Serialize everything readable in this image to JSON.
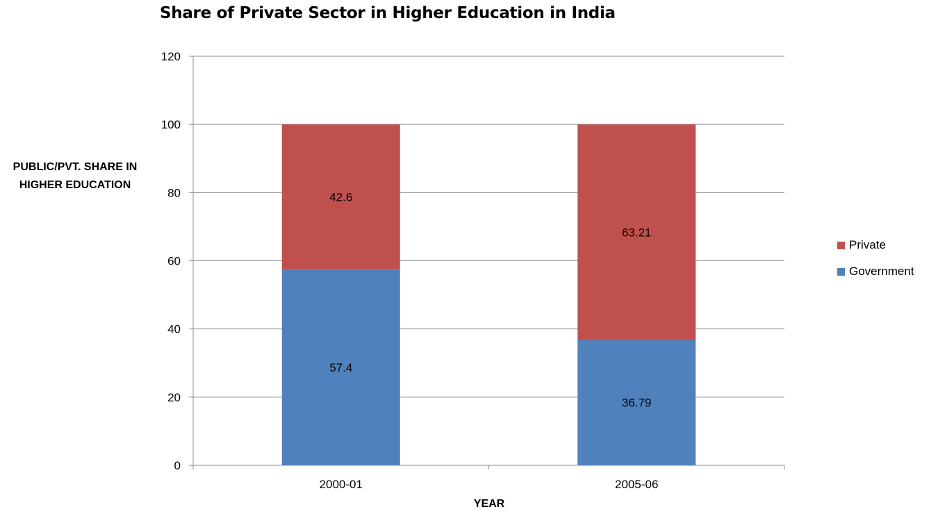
{
  "chart_data": {
    "type": "bar",
    "stacked": true,
    "title": "Share of Private Sector in Higher Education in India",
    "xlabel": "YEAR",
    "ylabel": "PUBLIC/PVT. SHARE IN HIGHER EDUCATION",
    "categories": [
      "2000-01",
      "2005-06"
    ],
    "series": [
      {
        "name": "Government",
        "values": [
          57.4,
          36.79
        ],
        "color": "#4f81bd",
        "data_labels": [
          "57.4",
          "36.79"
        ]
      },
      {
        "name": "Private",
        "values": [
          42.6,
          63.21
        ],
        "color": "#c0504d",
        "data_labels": [
          "42.6",
          "63.21"
        ]
      }
    ],
    "ylim": [
      0,
      120
    ],
    "yticks": [
      "0",
      "20",
      "40",
      "60",
      "80",
      "100",
      "120"
    ],
    "grid": true,
    "legend_position": "right",
    "legend_order": [
      "Private",
      "Government"
    ]
  }
}
